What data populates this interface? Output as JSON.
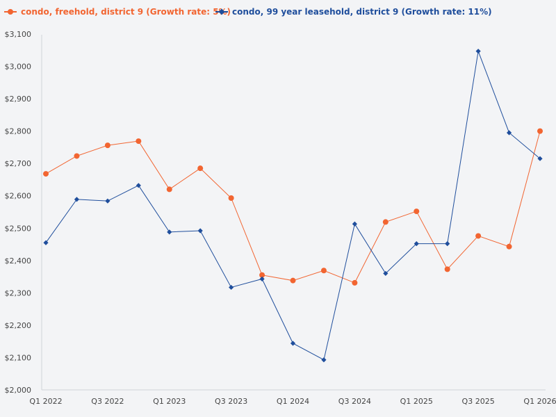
{
  "chart_data": {
    "type": "line",
    "title": "",
    "xlabel": "",
    "ylabel": "",
    "ylim": [
      2000,
      3100
    ],
    "y_ticks": [
      2000,
      2100,
      2200,
      2300,
      2400,
      2500,
      2600,
      2700,
      2800,
      2900,
      3000,
      3100
    ],
    "y_tick_labels": [
      "$2,000",
      "$2,100",
      "$2,200",
      "$2,300",
      "$2,400",
      "$2,500",
      "$2,600",
      "$2,700",
      "$2,800",
      "$2,900",
      "$3,000",
      "$3,100"
    ],
    "categories": [
      "Q1 2022",
      "Q2 2022",
      "Q3 2022",
      "Q4 2022",
      "Q1 2023",
      "Q2 2023",
      "Q3 2023",
      "Q4 2023",
      "Q1 2024",
      "Q2 2024",
      "Q3 2024",
      "Q4 2024",
      "Q1 2025",
      "Q2 2025",
      "Q3 2025",
      "Q4 2025",
      "Q1 2026"
    ],
    "x_tick_labels": [
      "Q1 2022",
      "",
      "Q3 2022",
      "",
      "Q1 2023",
      "",
      "Q3 2023",
      "",
      "Q1 2024",
      "",
      "Q3 2024",
      "",
      "Q1 2025",
      "",
      "Q3 2025",
      "",
      "Q1 2026"
    ],
    "legend_position": "top-left",
    "grid": false,
    "series": [
      {
        "name": "condo, freehold, district 9 (Growth rate: 5%)",
        "color": "#f26531",
        "marker": "circle",
        "values": [
          2668,
          2723,
          2756,
          2769,
          2620,
          2685,
          2593,
          2355,
          2338,
          2369,
          2331,
          2519,
          2552,
          2373,
          2476,
          2443,
          2800
        ]
      },
      {
        "name": "condo, 99 year leasehold, district 9 (Growth rate: 11%)",
        "color": "#1f4e9c",
        "marker": "diamond",
        "values": [
          2455,
          2589,
          2584,
          2632,
          2488,
          2492,
          2317,
          2343,
          2144,
          2093,
          2513,
          2360,
          2452,
          2452,
          3047,
          2795,
          2715
        ]
      }
    ]
  }
}
